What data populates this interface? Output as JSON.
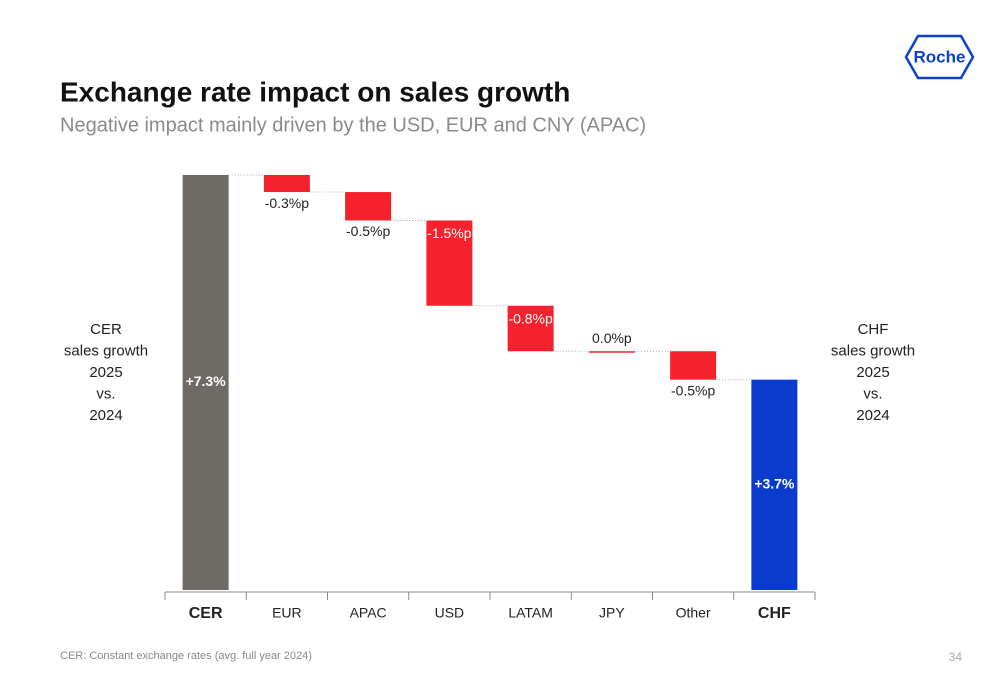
{
  "header": {
    "logo": "Roche"
  },
  "chart_data": {
    "type": "waterfall",
    "title": "Exchange rate impact on sales growth",
    "subtitle": "Negative impact mainly driven by the USD, EUR and CNY (APAC)",
    "categories": [
      "CER",
      "EUR",
      "APAC",
      "USD",
      "LATAM",
      "JPY",
      "Other",
      "CHF"
    ],
    "values": [
      7.3,
      -0.3,
      -0.5,
      -1.5,
      -0.8,
      0.0,
      -0.5,
      3.7
    ],
    "value_labels": [
      "+7.3%",
      "-0.3%p",
      "-0.5%p",
      "-1.5%p",
      "-0.8%p",
      "0.0%p",
      "-0.5%p",
      "+3.7%"
    ],
    "is_total": [
      true,
      false,
      false,
      false,
      false,
      false,
      false,
      true
    ],
    "colors": [
      "#6e6a66",
      "#f5222d",
      "#f5222d",
      "#f5222d",
      "#f5222d",
      "#f5222d",
      "#f5222d",
      "#0b3bcc"
    ],
    "ylim": [
      0,
      7.3
    ],
    "left_annotation": [
      "CER",
      "sales growth",
      "2025",
      "vs.",
      "2024"
    ],
    "right_annotation": [
      "CHF",
      "sales growth",
      "2025",
      "vs.",
      "2024"
    ]
  },
  "footer": {
    "note": "CER: Constant exchange rates (avg. full year 2024)",
    "page": "34"
  }
}
